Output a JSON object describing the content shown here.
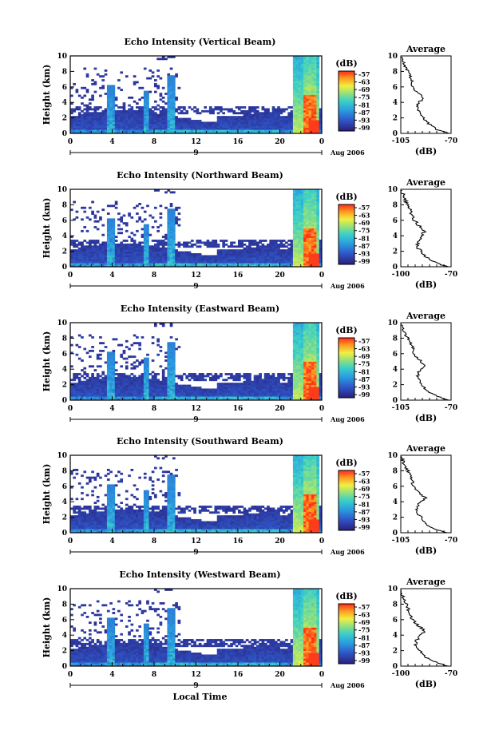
{
  "figure": {
    "xlabel": "Local Time",
    "date_label": "Aug 2006",
    "colorbar_unit": "(dB)",
    "colorbar_ticks": [
      "-57",
      "-63",
      "-69",
      "-75",
      "-81",
      "-87",
      "-93",
      "-99"
    ],
    "colors": {
      "low": "#2b2b8a",
      "mid_low": "#3a7ad6",
      "mid": "#34c6d6",
      "mid_high": "#e8e84a",
      "high": "#ff3c1e"
    }
  },
  "chart_data": [
    {
      "type": "heatmap",
      "title": "Echo Intensity (Vertical Beam)",
      "ylabel": "Height (km)",
      "xlabel": "",
      "xlim": [
        0,
        24
      ],
      "ylim": [
        0,
        10
      ],
      "x_ticks": [
        "0",
        "4",
        "8",
        "12",
        "16",
        "20",
        "0"
      ],
      "day_marker": "9",
      "y_ticks": [
        "0",
        "2",
        "4",
        "6",
        "8",
        "10"
      ],
      "colorbar_range_db": [
        -99,
        -57
      ],
      "average_profile": {
        "title": "Average",
        "xlabel": "(dB)",
        "xlim": [
          -105,
          -70
        ],
        "x_ticks": [
          "-105",
          "-70"
        ],
        "height_km": [
          0,
          0.5,
          1,
          1.5,
          2,
          2.5,
          3,
          3.5,
          4,
          4.5,
          5,
          5.5,
          6,
          6.5,
          7,
          7.5,
          8,
          8.5,
          9,
          9.5
        ],
        "db": [
          -72,
          -80,
          -84,
          -87,
          -89,
          -92,
          -93,
          -94,
          -93,
          -89,
          -92,
          -95,
          -97,
          -97,
          -98,
          -99,
          -100,
          -102,
          -103,
          -104
        ]
      }
    },
    {
      "type": "heatmap",
      "title": "Echo Intensity (Northward Beam)",
      "ylabel": "Height (km)",
      "xlabel": "",
      "xlim": [
        0,
        24
      ],
      "ylim": [
        0,
        10
      ],
      "x_ticks": [
        "0",
        "4",
        "8",
        "12",
        "16",
        "20",
        "0"
      ],
      "day_marker": "9",
      "y_ticks": [
        "0",
        "2",
        "4",
        "6",
        "8",
        "10"
      ],
      "colorbar_range_db": [
        -99,
        -57
      ],
      "average_profile": {
        "title": "Average",
        "xlabel": "(dB)",
        "xlim": [
          -100,
          -70
        ],
        "x_ticks": [
          "-100",
          "-70"
        ],
        "height_km": [
          0,
          0.5,
          1,
          1.5,
          2,
          2.5,
          3,
          3.5,
          4,
          4.5,
          5,
          5.5,
          6,
          6.5,
          7,
          7.5,
          8,
          8.5,
          9,
          9.5
        ],
        "db": [
          -72,
          -79,
          -83,
          -86,
          -88,
          -90,
          -90,
          -89,
          -88,
          -86,
          -88,
          -90,
          -92,
          -93,
          -94,
          -95,
          -96,
          -97,
          -98,
          -99
        ]
      }
    },
    {
      "type": "heatmap",
      "title": "Echo Intensity (Eastward Beam)",
      "ylabel": "Height (km)",
      "xlabel": "",
      "xlim": [
        0,
        24
      ],
      "ylim": [
        0,
        10
      ],
      "x_ticks": [
        "0",
        "4",
        "8",
        "12",
        "16",
        "20",
        "0"
      ],
      "day_marker": "9",
      "y_ticks": [
        "0",
        "2",
        "4",
        "6",
        "8",
        "10"
      ],
      "colorbar_range_db": [
        -99,
        -57
      ],
      "average_profile": {
        "title": "Average",
        "xlabel": "(dB)",
        "xlim": [
          -105,
          -70
        ],
        "x_ticks": [
          "-105",
          "-70"
        ],
        "height_km": [
          0,
          0.5,
          1,
          1.5,
          2,
          2.5,
          3,
          3.5,
          4,
          4.5,
          5,
          5.5,
          6,
          6.5,
          7,
          7.5,
          8,
          8.5,
          9,
          9.5
        ],
        "db": [
          -72,
          -80,
          -85,
          -88,
          -90,
          -92,
          -93,
          -93,
          -91,
          -88,
          -91,
          -94,
          -96,
          -96,
          -97,
          -99,
          -100,
          -102,
          -103,
          -104
        ]
      }
    },
    {
      "type": "heatmap",
      "title": "Echo Intensity (Southward Beam)",
      "ylabel": "Height (km)",
      "xlabel": "",
      "xlim": [
        0,
        24
      ],
      "ylim": [
        0,
        10
      ],
      "x_ticks": [
        "0",
        "4",
        "8",
        "12",
        "16",
        "20",
        "0"
      ],
      "day_marker": "9",
      "y_ticks": [
        "0",
        "2",
        "4",
        "6",
        "8",
        "10"
      ],
      "colorbar_range_db": [
        -99,
        -57
      ],
      "average_profile": {
        "title": "Average",
        "xlabel": "(dB)",
        "xlim": [
          -105,
          -70
        ],
        "x_ticks": [
          "-105",
          "-70"
        ],
        "height_km": [
          0,
          0.5,
          1,
          1.5,
          2,
          2.5,
          3,
          3.5,
          4,
          4.5,
          5,
          5.5,
          6,
          6.5,
          7,
          7.5,
          8,
          8.5,
          9,
          9.5
        ],
        "db": [
          -73,
          -81,
          -86,
          -89,
          -91,
          -93,
          -94,
          -93,
          -91,
          -88,
          -91,
          -94,
          -96,
          -97,
          -98,
          -99,
          -100,
          -102,
          -103,
          -104
        ]
      }
    },
    {
      "type": "heatmap",
      "title": "Echo Intensity (Westward Beam)",
      "ylabel": "Height (km)",
      "xlabel": "Local Time",
      "xlim": [
        0,
        24
      ],
      "ylim": [
        0,
        10
      ],
      "x_ticks": [
        "0",
        "4",
        "8",
        "12",
        "16",
        "20",
        "0"
      ],
      "day_marker": "9",
      "y_ticks": [
        "0",
        "2",
        "4",
        "6",
        "8",
        "10"
      ],
      "colorbar_range_db": [
        -99,
        -57
      ],
      "average_profile": {
        "title": "Average",
        "xlabel": "(dB)",
        "xlim": [
          -100,
          -70
        ],
        "x_ticks": [
          "-100",
          "-70"
        ],
        "height_km": [
          0,
          0.5,
          1,
          1.5,
          2,
          2.5,
          3,
          3.5,
          4,
          4.5,
          5,
          5.5,
          6,
          6.5,
          7,
          7.5,
          8,
          8.5,
          9,
          9.5
        ],
        "db": [
          -72,
          -79,
          -84,
          -87,
          -89,
          -91,
          -91,
          -90,
          -88,
          -86,
          -88,
          -91,
          -93,
          -94,
          -95,
          -96,
          -97,
          -98,
          -99,
          -100
        ]
      }
    }
  ]
}
